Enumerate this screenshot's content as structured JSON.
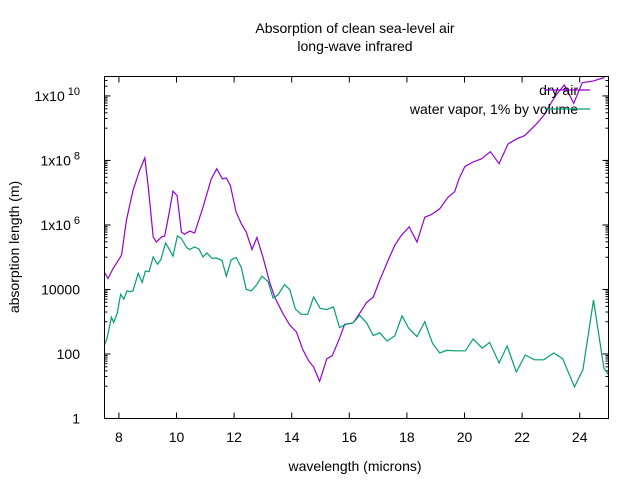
{
  "chart_data": {
    "type": "line",
    "title": [
      "Absorption of clean sea-level air",
      "long-wave infrared"
    ],
    "xlabel": "wavelength (microns)",
    "ylabel": "absorption length (m)",
    "xlim": [
      7.5,
      25
    ],
    "ylim": [
      1,
      40000000000.0
    ],
    "yscale": "log",
    "grid": false,
    "legend_position": "top-right",
    "x_ticks": [
      8,
      10,
      12,
      14,
      16,
      18,
      20,
      22,
      24
    ],
    "x_tick_labels": [
      "8",
      "10",
      "12",
      "14",
      "16",
      "18",
      "20",
      "22",
      "24"
    ],
    "y_ticks": [
      1,
      100,
      10000,
      1000000.0,
      100000000.0,
      10000000000.0
    ],
    "y_tick_labels": [
      {
        "base": "1",
        "exp": ""
      },
      {
        "base": "100",
        "exp": ""
      },
      {
        "base": "10000",
        "exp": ""
      },
      {
        "base": "1x10",
        "exp": "6"
      },
      {
        "base": "1x10",
        "exp": "8"
      },
      {
        "base": "1x10",
        "exp": "10"
      }
    ],
    "series": [
      {
        "name": "dry air",
        "color": "#9400d3",
        "x": [
          7.5,
          7.62,
          7.8,
          8.09,
          8.26,
          8.49,
          8.72,
          8.9,
          9.02,
          9.19,
          9.3,
          9.48,
          9.59,
          9.74,
          9.88,
          10.02,
          10.17,
          10.28,
          10.46,
          10.63,
          10.92,
          11.21,
          11.4,
          11.59,
          11.73,
          11.87,
          12.07,
          12.25,
          12.42,
          12.62,
          12.79,
          13.0,
          13.23,
          13.41,
          13.69,
          13.93,
          14.16,
          14.39,
          14.6,
          14.76,
          14.97,
          15.22,
          15.41,
          15.64,
          15.84,
          16.13,
          16.36,
          16.6,
          16.83,
          17.06,
          17.35,
          17.58,
          17.81,
          18.08,
          18.35,
          18.62,
          18.85,
          19.14,
          19.43,
          19.66,
          19.81,
          20.01,
          20.3,
          20.59,
          20.9,
          21.2,
          21.51,
          21.8,
          22.09,
          22.32,
          22.55,
          22.78,
          23.01,
          23.24,
          23.47,
          23.79,
          24.09,
          24.46,
          24.86
        ],
        "y_log10": [
          4.53,
          4.34,
          4.65,
          5.06,
          6.14,
          7.07,
          7.69,
          8.08,
          7.17,
          5.63,
          5.47,
          5.63,
          5.66,
          6.35,
          7.05,
          6.91,
          5.78,
          5.71,
          5.81,
          5.75,
          6.55,
          7.43,
          7.74,
          7.43,
          7.46,
          7.22,
          6.4,
          6.04,
          5.78,
          5.24,
          5.61,
          5.01,
          4.24,
          3.76,
          3.26,
          2.9,
          2.69,
          2.13,
          1.77,
          1.6,
          1.15,
          1.85,
          1.95,
          2.44,
          2.92,
          2.96,
          3.26,
          3.6,
          3.76,
          4.29,
          4.91,
          5.37,
          5.68,
          5.94,
          5.47,
          6.24,
          6.32,
          6.5,
          6.86,
          7.03,
          7.43,
          7.81,
          7.95,
          8.05,
          8.27,
          7.9,
          8.51,
          8.66,
          8.77,
          8.97,
          9.18,
          9.43,
          9.79,
          10.1,
          10.34,
          9.77,
          10.41,
          10.46,
          10.57
        ]
      },
      {
        "name": "water vapor, 1% by volume",
        "color": "#009e73",
        "x": [
          7.5,
          7.59,
          7.74,
          7.82,
          7.94,
          8.06,
          8.17,
          8.28,
          8.4,
          8.49,
          8.67,
          8.81,
          8.92,
          9.05,
          9.19,
          9.34,
          9.46,
          9.62,
          9.77,
          9.88,
          10.03,
          10.17,
          10.35,
          10.46,
          10.63,
          10.78,
          10.92,
          11.06,
          11.24,
          11.38,
          11.58,
          11.73,
          11.9,
          12.07,
          12.25,
          12.42,
          12.6,
          12.77,
          12.97,
          13.18,
          13.35,
          13.52,
          13.75,
          13.93,
          14.13,
          14.33,
          14.56,
          14.76,
          14.99,
          15.22,
          15.45,
          15.66,
          15.89,
          16.13,
          16.36,
          16.61,
          16.83,
          17.06,
          17.31,
          17.58,
          17.83,
          18.06,
          18.35,
          18.62,
          18.89,
          19.14,
          19.37,
          19.66,
          20.03,
          20.3,
          20.62,
          20.87,
          21.2,
          21.48,
          21.8,
          22.11,
          22.43,
          22.75,
          23.1,
          23.41,
          23.82,
          24.11,
          24.48,
          24.84,
          25.0
        ],
        "y_log10": [
          2.28,
          2.49,
          3.14,
          2.98,
          3.26,
          3.85,
          3.7,
          3.96,
          3.93,
          3.96,
          4.5,
          4.22,
          4.57,
          4.55,
          5.01,
          4.78,
          4.93,
          5.44,
          5.21,
          5.03,
          5.66,
          5.58,
          5.3,
          5.24,
          5.32,
          5.25,
          5.01,
          5.13,
          4.96,
          4.98,
          4.9,
          4.41,
          4.92,
          4.99,
          4.68,
          4.0,
          3.96,
          4.13,
          4.41,
          4.24,
          3.74,
          3.83,
          4.15,
          4.0,
          3.39,
          3.23,
          3.23,
          3.77,
          3.41,
          3.38,
          3.46,
          2.82,
          2.92,
          2.96,
          3.2,
          2.95,
          2.57,
          2.66,
          2.4,
          2.56,
          3.18,
          2.8,
          2.54,
          3.0,
          2.33,
          2.03,
          2.11,
          2.1,
          2.1,
          2.46,
          2.18,
          2.36,
          1.72,
          2.25,
          1.44,
          1.97,
          1.82,
          1.82,
          2.03,
          1.85,
          0.98,
          1.51,
          3.67,
          1.56,
          1.36
        ]
      }
    ]
  }
}
